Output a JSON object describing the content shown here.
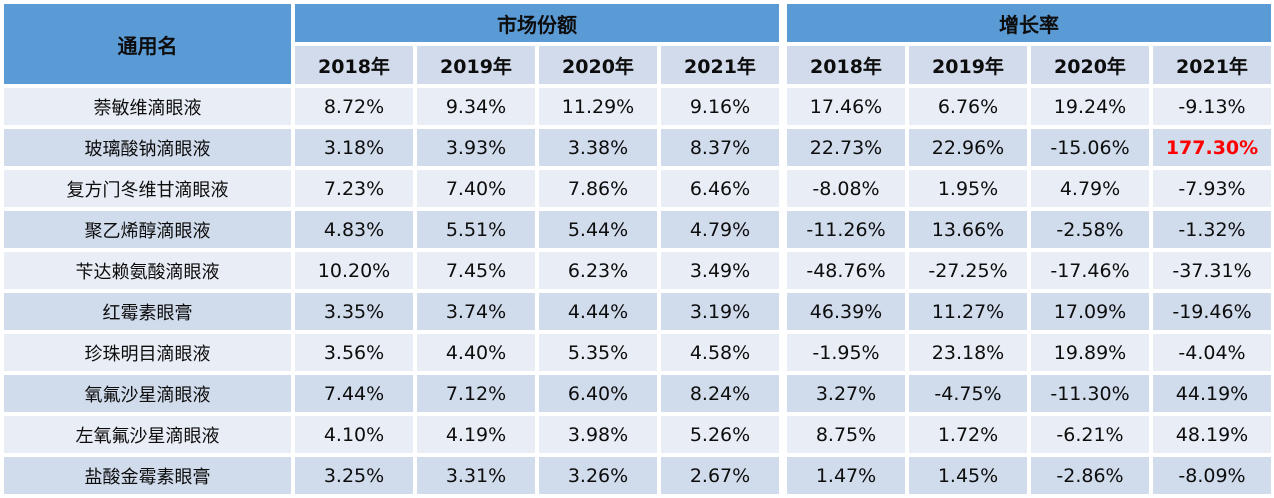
{
  "colors": {
    "header_bg": "#5B9BD5",
    "year_row_bg": "#D2DBEB",
    "row_light_bg": "#E9EDF5",
    "row_dark_bg": "#D0DBEC",
    "text": "#0d0d0d",
    "highlight_text": "#FF0000"
  },
  "header": {
    "generic_name_label": "通用名",
    "group_labels": [
      "市场份额",
      "增长率"
    ],
    "year_labels": [
      "2018年",
      "2019年",
      "2020年",
      "2021年"
    ]
  },
  "chart_data": {
    "type": "table",
    "column_groups": [
      {
        "label": "市场份额",
        "years": [
          "2018年",
          "2019年",
          "2020年",
          "2021年"
        ]
      },
      {
        "label": "增长率",
        "years": [
          "2018年",
          "2019年",
          "2020年",
          "2021年"
        ]
      }
    ],
    "row_header_label": "通用名",
    "rows": [
      {
        "name": "萘敏维滴眼液",
        "market_share": [
          "8.72%",
          "9.34%",
          "11.29%",
          "9.16%"
        ],
        "growth": [
          "17.46%",
          "6.76%",
          "19.24%",
          "-9.13%"
        ]
      },
      {
        "name": "玻璃酸钠滴眼液",
        "market_share": [
          "3.18%",
          "3.93%",
          "3.38%",
          "8.37%"
        ],
        "growth": [
          "22.73%",
          "22.96%",
          "-15.06%",
          "177.30%"
        ]
      },
      {
        "name": "复方门冬维甘滴眼液",
        "market_share": [
          "7.23%",
          "7.40%",
          "7.86%",
          "6.46%"
        ],
        "growth": [
          "-8.08%",
          "1.95%",
          "4.79%",
          "-7.93%"
        ]
      },
      {
        "name": "聚乙烯醇滴眼液",
        "market_share": [
          "4.83%",
          "5.51%",
          "5.44%",
          "4.79%"
        ],
        "growth": [
          "-11.26%",
          "13.66%",
          "-2.58%",
          "-1.32%"
        ]
      },
      {
        "name": "苄达赖氨酸滴眼液",
        "market_share": [
          "10.20%",
          "7.45%",
          "6.23%",
          "3.49%"
        ],
        "growth": [
          "-48.76%",
          "-27.25%",
          "-17.46%",
          "-37.31%"
        ]
      },
      {
        "name": "红霉素眼膏",
        "market_share": [
          "3.35%",
          "3.74%",
          "4.44%",
          "3.19%"
        ],
        "growth": [
          "46.39%",
          "11.27%",
          "17.09%",
          "-19.46%"
        ]
      },
      {
        "name": "珍珠明目滴眼液",
        "market_share": [
          "3.56%",
          "4.40%",
          "5.35%",
          "4.58%"
        ],
        "growth": [
          "-1.95%",
          "23.18%",
          "19.89%",
          "-4.04%"
        ]
      },
      {
        "name": "氧氟沙星滴眼液",
        "market_share": [
          "7.44%",
          "7.12%",
          "6.40%",
          "8.24%"
        ],
        "growth": [
          "3.27%",
          "-4.75%",
          "-11.30%",
          "44.19%"
        ]
      },
      {
        "name": "左氧氟沙星滴眼液",
        "market_share": [
          "4.10%",
          "4.19%",
          "3.98%",
          "5.26%"
        ],
        "growth": [
          "8.75%",
          "1.72%",
          "-6.21%",
          "48.19%"
        ]
      },
      {
        "name": "盐酸金霉素眼膏",
        "market_share": [
          "3.25%",
          "3.31%",
          "3.26%",
          "2.67%"
        ],
        "growth": [
          "1.47%",
          "1.45%",
          "-2.86%",
          "-8.09%"
        ]
      }
    ],
    "highlight_cell": {
      "row_index": 1,
      "row_name": "玻璃酸钠滴眼液",
      "group": "增长率",
      "year": "2021年",
      "growth_col_index": 3,
      "value": "177.30%",
      "color": "#FF0000"
    }
  }
}
